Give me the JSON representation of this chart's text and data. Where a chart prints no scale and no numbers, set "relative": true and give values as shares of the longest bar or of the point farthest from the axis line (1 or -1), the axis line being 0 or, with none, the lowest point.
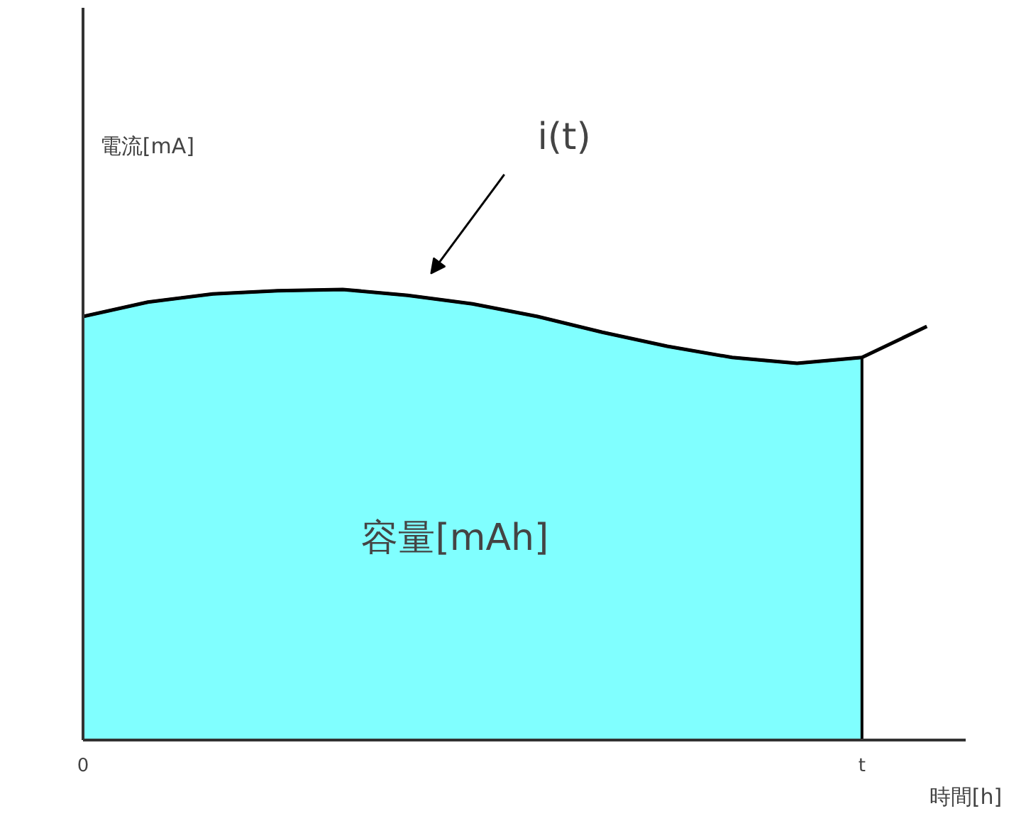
{
  "chart_data": {
    "type": "area",
    "relative": true,
    "xlabel": "時間[h]",
    "tick_labels": "x",
    "categories": [
      "0",
      null,
      null,
      null,
      null,
      null,
      null,
      null,
      null,
      null,
      null,
      null,
      "t",
      null
    ],
    "grid": false,
    "series": [
      {
        "color": "#80ffff",
        "values": [
          0.94,
          0.972,
          0.99,
          0.997,
          1,
          0.987,
          0.968,
          0.94,
          0.905,
          0.874,
          0.849,
          0.836,
          0.849,
          null
        ]
      },
      {
        "type": "line",
        "color": "#000000",
        "values": [
          0.94,
          0.972,
          0.99,
          0.997,
          1,
          0.987,
          0.968,
          0.94,
          0.905,
          0.874,
          0.849,
          0.836,
          0.849,
          0.918
        ]
      }
    ],
    "annotations": [
      "電流[mA]",
      "i(t)",
      "容量[mAh]"
    ]
  }
}
